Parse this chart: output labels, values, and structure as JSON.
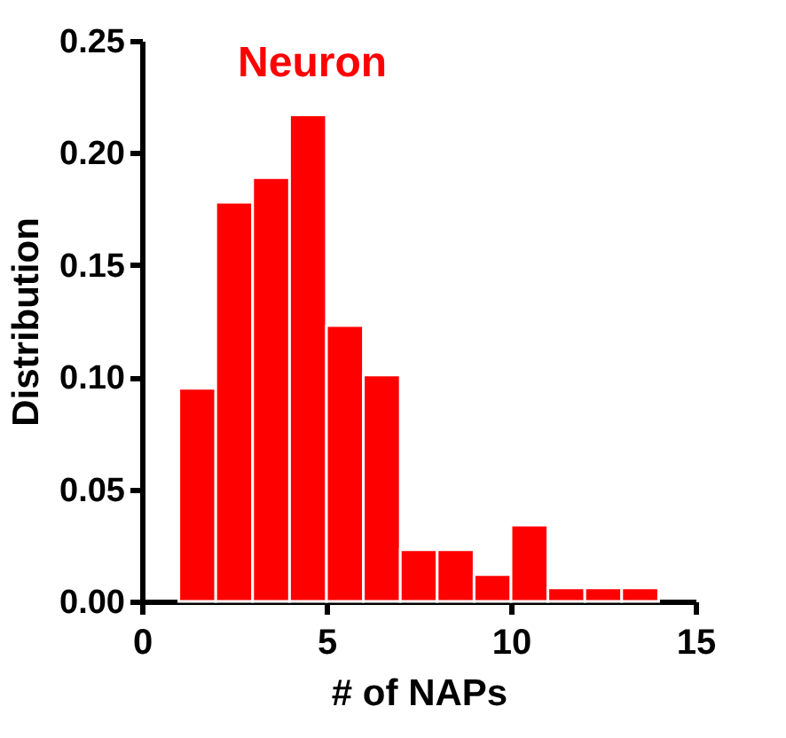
{
  "chart_data": {
    "type": "histogram",
    "title": "Neuron",
    "xlabel": "# of NAPs",
    "ylabel": "Distribution",
    "color": "#ff0000",
    "bins": [
      1,
      2,
      3,
      4,
      5,
      6,
      7,
      8,
      9,
      10,
      11,
      12,
      13,
      14
    ],
    "values": [
      0.095,
      0.178,
      0.189,
      0.217,
      0.123,
      0.101,
      0.023,
      0.023,
      0.012,
      0.034,
      0.006,
      0.006,
      0.006
    ],
    "xlim": [
      0,
      15
    ],
    "xticks": [
      0,
      5,
      10,
      15
    ],
    "ylim": [
      0,
      0.25
    ],
    "yticks": [
      {
        "value": 0,
        "label": "0.00"
      },
      {
        "value": 0.05,
        "label": "0.05"
      },
      {
        "value": 0.1,
        "label": "0.10"
      },
      {
        "value": 0.15,
        "label": "0.15"
      },
      {
        "value": 0.2,
        "label": "0.20"
      },
      {
        "value": 0.25,
        "label": "0.25"
      }
    ],
    "grid": false
  }
}
